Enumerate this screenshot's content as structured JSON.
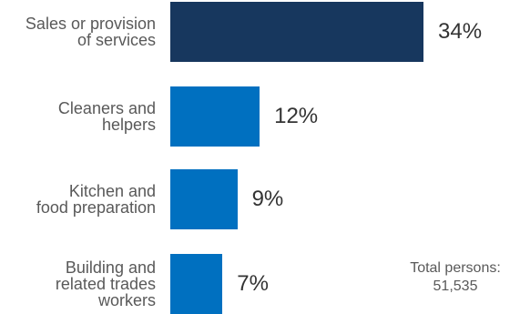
{
  "chart_data": {
    "type": "bar",
    "orientation": "horizontal",
    "categories": [
      "Sales or provision\nof services",
      "Cleaners and\nhelpers",
      "Kitchen and\nfood preparation",
      "Building and\nrelated trades\nworkers"
    ],
    "values": [
      34,
      12,
      9,
      7
    ],
    "value_labels": [
      "34%",
      "12%",
      "9%",
      "7%"
    ],
    "unit": "%",
    "colors": [
      "#17375e",
      "#0070c0",
      "#0070c0",
      "#0070c0"
    ],
    "xlim": [
      0,
      34
    ],
    "grid": false,
    "legend": "none",
    "annotation": {
      "line1": "Total persons:",
      "line2": "51,535"
    }
  }
}
